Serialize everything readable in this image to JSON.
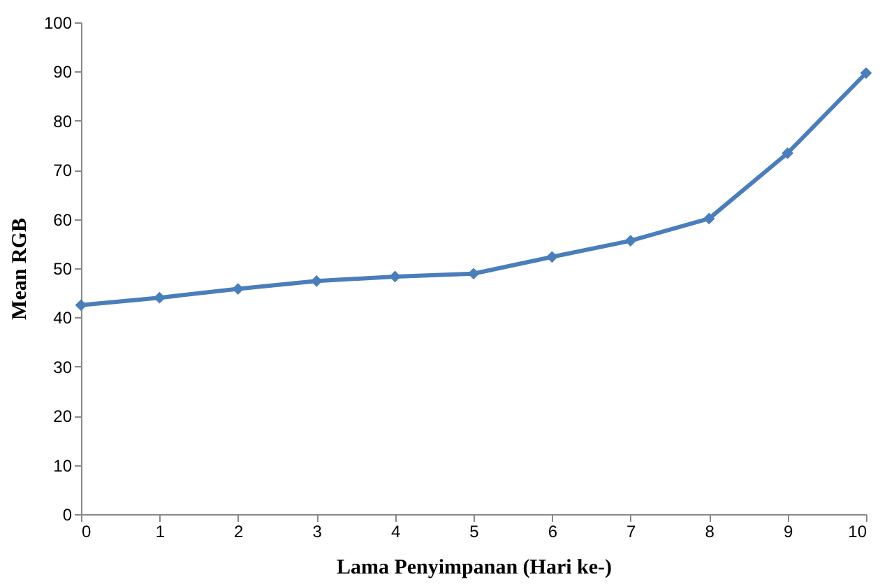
{
  "chart_data": {
    "type": "line",
    "xlabel": "Lama Penyimpanan (Hari ke-)",
    "ylabel": "Mean RGB",
    "x": [
      0,
      1,
      2,
      3,
      4,
      5,
      6,
      7,
      8,
      9,
      10
    ],
    "series": [
      {
        "color": "#4a7ebb",
        "values": [
          42.5,
          44.0,
          45.8,
          47.4,
          48.3,
          48.9,
          52.3,
          55.6,
          60.1,
          73.4,
          89.7
        ]
      }
    ],
    "xlim": [
      0,
      10
    ],
    "xticks": [
      0,
      1,
      2,
      3,
      4,
      5,
      6,
      7,
      8,
      9,
      10
    ],
    "ylim": [
      0,
      100
    ],
    "yticks": [
      0,
      10,
      20,
      30,
      40,
      50,
      60,
      70,
      80,
      90,
      100
    ],
    "grid": false,
    "marker": "diamond",
    "line_style": "solid"
  }
}
